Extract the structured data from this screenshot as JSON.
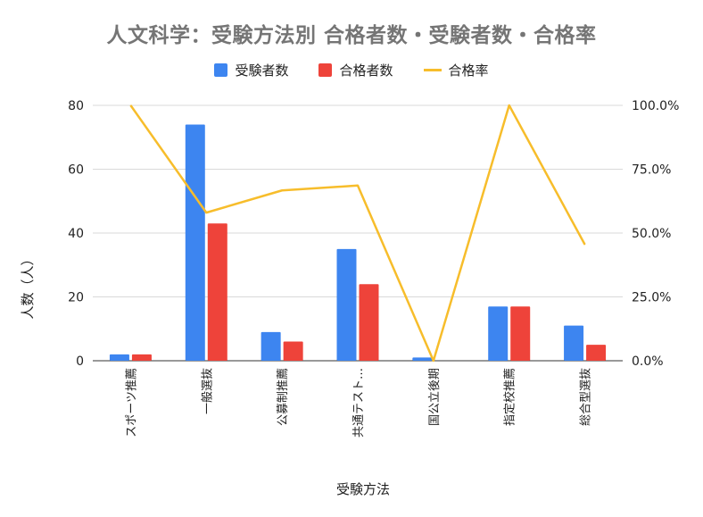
{
  "chart_data": {
    "type": "bar",
    "title": "人文科学：受験方法別 合格者数・受験者数・合格率",
    "xlabel": "受験方法",
    "ylabel": "人数（人）",
    "categories": [
      "スポーツ推薦",
      "一般選抜",
      "公募制推薦",
      "共通テスト…",
      "国公立後期",
      "指定校推薦",
      "総合型選抜"
    ],
    "ylim": [
      0,
      80
    ],
    "yticks": [
      "0",
      "20",
      "40",
      "60",
      "80"
    ],
    "y2lim": [
      0,
      1
    ],
    "y2ticks": [
      "0.0%",
      "25.0%",
      "50.0%",
      "75.0%",
      "100.0%"
    ],
    "grid": true,
    "legend_position": "top",
    "series": [
      {
        "name": "受験者数",
        "type": "bar",
        "axis": "left",
        "color": "#3d85f0",
        "values": [
          2,
          74,
          9,
          35,
          1,
          17,
          11
        ]
      },
      {
        "name": "合格者数",
        "type": "bar",
        "axis": "left",
        "color": "#ee433a",
        "values": [
          2,
          43,
          6,
          24,
          0,
          17,
          5
        ]
      },
      {
        "name": "合格率",
        "type": "line",
        "axis": "right",
        "color": "#f7bd2b",
        "values": [
          1.0,
          0.58,
          0.667,
          0.686,
          0.0,
          1.0,
          0.455
        ]
      }
    ]
  }
}
